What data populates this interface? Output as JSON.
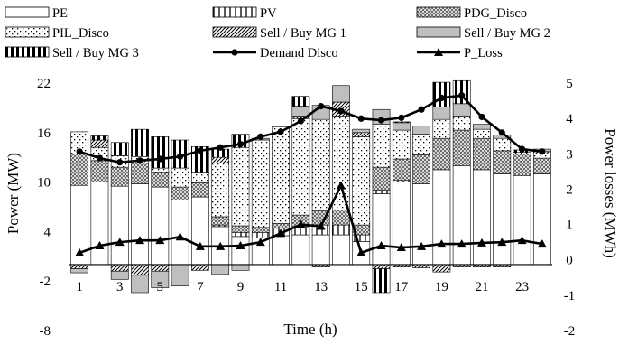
{
  "chart_data": {
    "type": "bar",
    "stacking": "stacked-with-lines",
    "xlabel": "Time (h)",
    "ylabel": "Power (MW)",
    "y2label": "Power losses (MWh)",
    "ylim": [
      -8,
      22
    ],
    "y2lim": [
      -2,
      5
    ],
    "yticks": [
      -8,
      -2,
      4,
      10,
      16,
      22
    ],
    "y2ticks": [
      -2,
      -1,
      0,
      1,
      2,
      3,
      4,
      5
    ],
    "x_hours": [
      1,
      2,
      3,
      4,
      5,
      6,
      7,
      8,
      9,
      10,
      11,
      12,
      13,
      14,
      15,
      16,
      17,
      18,
      19,
      20,
      21,
      22,
      23,
      24
    ],
    "x_tick_labels": [
      "1",
      "3",
      "5",
      "7",
      "9",
      "11",
      "13",
      "15",
      "17",
      "19",
      "21",
      "23"
    ],
    "legend_position": "top",
    "grid": false,
    "bar_series": [
      {
        "name": "PE",
        "pattern": "white",
        "values": [
          9.6,
          10.0,
          9.5,
          9.8,
          9.4,
          7.8,
          8.2,
          4.6,
          3.4,
          3.2,
          3.5,
          3.6,
          3.6,
          3.6,
          2.8,
          8.6,
          10.0,
          9.8,
          11.5,
          12.0,
          11.5,
          11.0,
          10.8,
          11.0
        ]
      },
      {
        "name": "PV",
        "pattern": "verticals",
        "values": [
          0,
          0,
          0,
          0,
          0,
          0,
          0,
          0.2,
          0.5,
          0.7,
          0.9,
          1.0,
          1.2,
          1.2,
          0.8,
          0.4,
          0.2,
          0,
          0,
          0,
          0,
          0,
          0,
          0
        ]
      },
      {
        "name": "PDG_Disco",
        "pattern": "crosshatch",
        "values": [
          3.8,
          2.6,
          2.3,
          2.5,
          1.8,
          1.6,
          1.7,
          1.0,
          0.8,
          0.6,
          0.6,
          1.4,
          1.7,
          1.8,
          1.2,
          2.8,
          2.6,
          3.5,
          3.8,
          4.3,
          3.8,
          2.8,
          2.6,
          1.9
        ]
      },
      {
        "name": "PIL_Disco",
        "pattern": "dots",
        "values": [
          2.7,
          1.6,
          1.4,
          0.8,
          0.5,
          2.3,
          1.3,
          6.5,
          9.5,
          10.6,
          11.7,
          11.7,
          11.1,
          11.4,
          10.7,
          5.2,
          3.5,
          2.5,
          2.3,
          1.7,
          1.1,
          1.5,
          0.2,
          0.5
        ]
      },
      {
        "name": "Sell / Buy  MG 1",
        "pattern": "diagonal",
        "values": [
          -0.5,
          0.9,
          -0.8,
          -1.3,
          -0.8,
          0,
          -0.7,
          0.7,
          0,
          0,
          0,
          0.3,
          -0.3,
          1.7,
          0.5,
          -0.5,
          -0.3,
          -0.4,
          -0.9,
          -0.3,
          -0.3,
          -0.3,
          0,
          0.3
        ]
      },
      {
        "name": "Sell / Buy  MG 2",
        "pattern": "gray",
        "values": [
          -0.5,
          0,
          -1.0,
          -2.1,
          -2.0,
          -2.6,
          0,
          -1.2,
          -0.7,
          0.2,
          0,
          1.2,
          1.7,
          2.0,
          0.4,
          1.8,
          0.9,
          1.0,
          1.5,
          1.5,
          0.6,
          0.4,
          0,
          0.3
        ]
      },
      {
        "name": "Sell / Buy  MG 3",
        "pattern": "thickbars",
        "values": [
          0,
          0.5,
          1.6,
          3.3,
          3.8,
          3.4,
          3.1,
          1.0,
          1.6,
          0,
          0,
          1.2,
          0,
          0,
          0,
          -2.9,
          0.1,
          0,
          3.0,
          2.8,
          0,
          0,
          0.3,
          0
        ]
      }
    ],
    "line_series": [
      {
        "name": "Demand Disco",
        "marker": "circle",
        "axis": "left",
        "values": [
          13.7,
          12.9,
          12.4,
          12.6,
          12.8,
          13.1,
          13.8,
          14.2,
          14.6,
          15.5,
          16.1,
          17.4,
          19.2,
          18.6,
          17.7,
          17.5,
          17.8,
          18.8,
          20.2,
          20.5,
          17.9,
          16.0,
          14.0,
          13.7
        ]
      },
      {
        "name": "P_Loss",
        "marker": "triangle",
        "axis": "right",
        "values": [
          0.2,
          0.4,
          0.5,
          0.55,
          0.55,
          0.65,
          0.38,
          0.38,
          0.4,
          0.5,
          0.75,
          1.0,
          0.95,
          2.1,
          0.2,
          0.4,
          0.35,
          0.38,
          0.45,
          0.45,
          0.48,
          0.5,
          0.55,
          0.45
        ]
      }
    ]
  }
}
